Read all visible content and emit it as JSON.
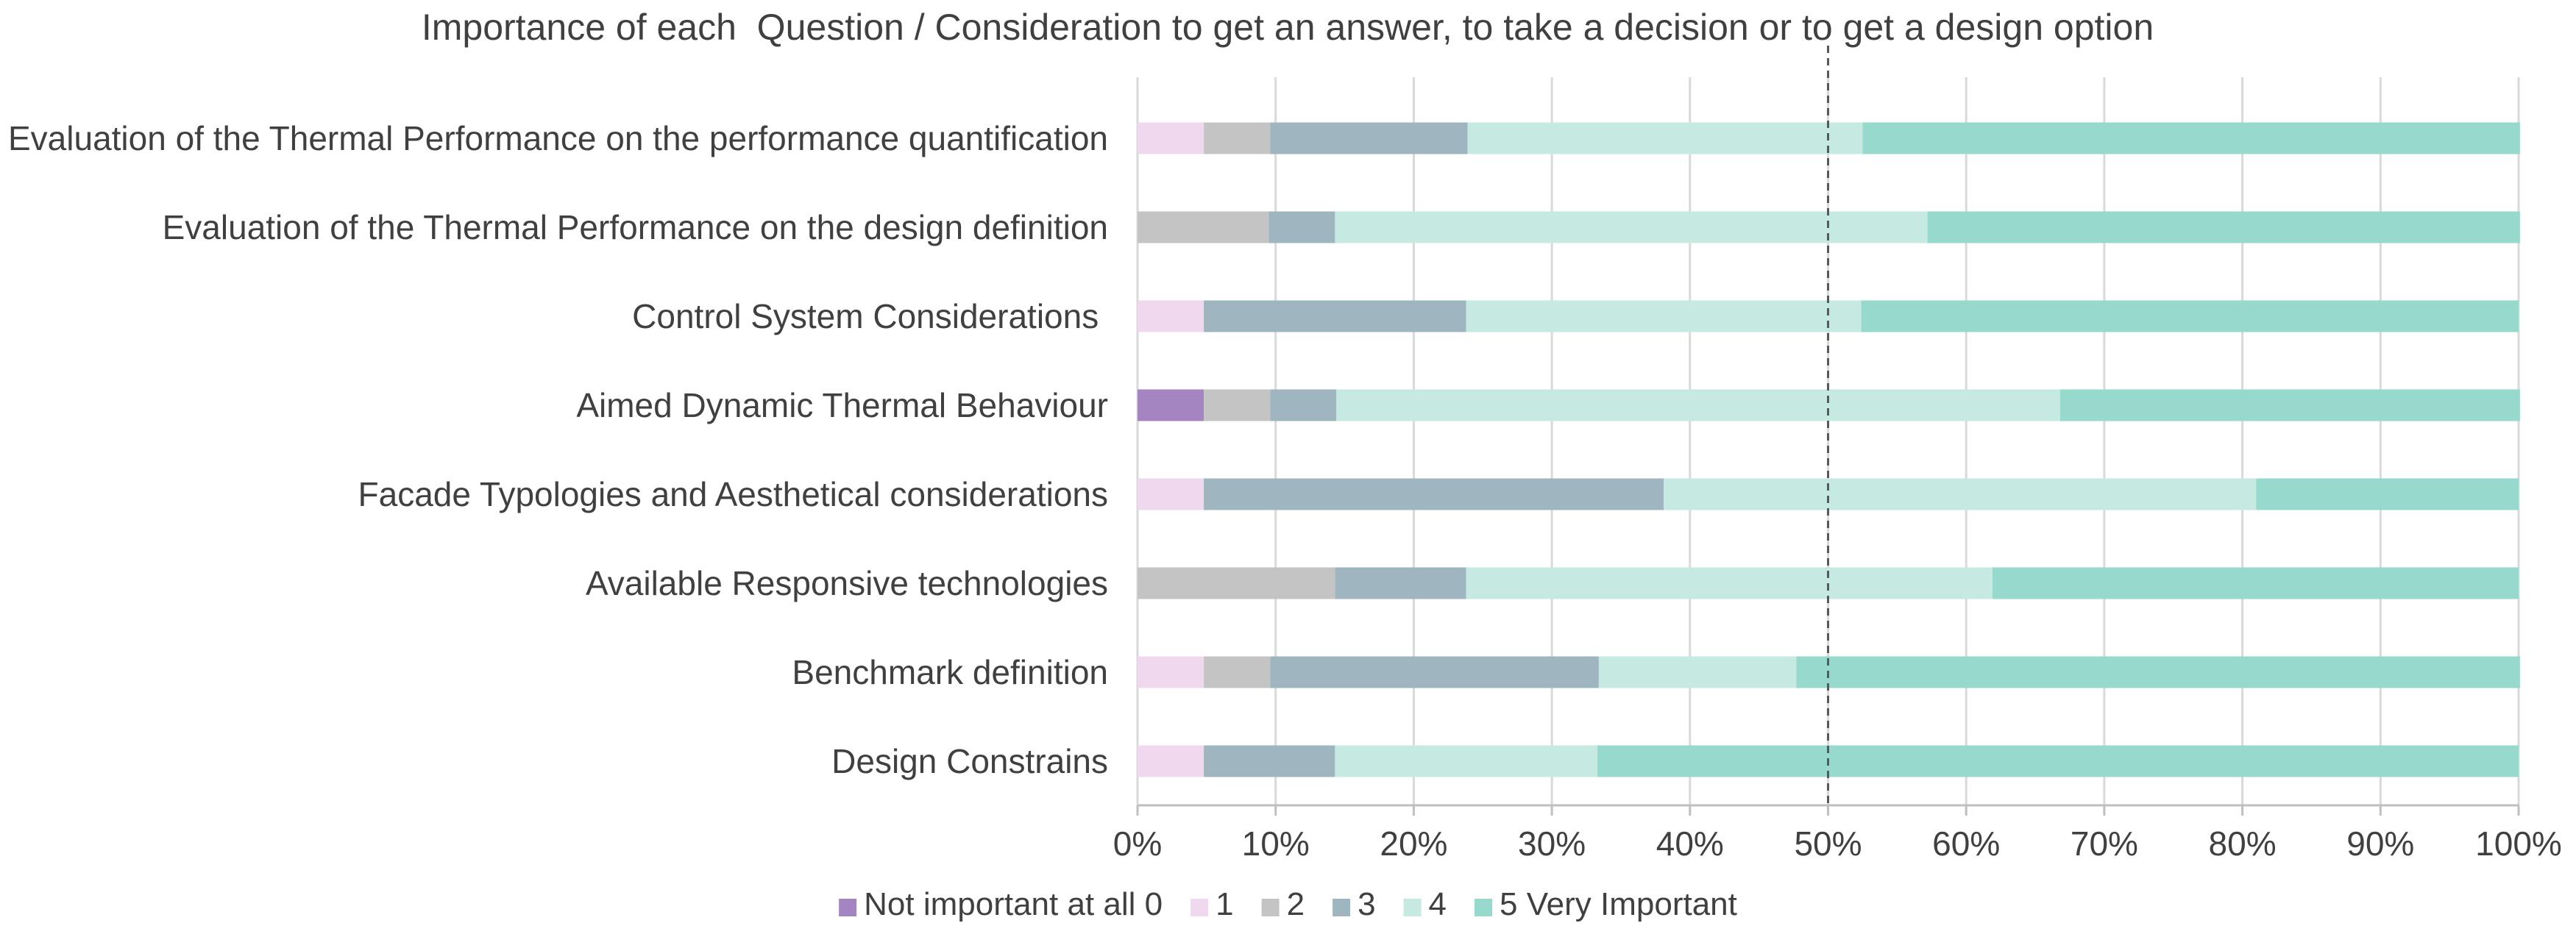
{
  "chart_data": {
    "type": "bar",
    "orientation": "horizontal",
    "stacked": "percent",
    "title": "Importance of each  Question / Consideration to get an answer, to take a decision or to get a design option",
    "xlabel": "",
    "ylabel": "",
    "xlim": [
      0,
      100
    ],
    "x_ticks": [
      "0%",
      "10%",
      "20%",
      "30%",
      "40%",
      "50%",
      "60%",
      "70%",
      "80%",
      "90%",
      "100%"
    ],
    "grid": true,
    "reference_line": {
      "value": 50,
      "style": "dashed"
    },
    "legend_position": "bottom",
    "categories": [
      "Evaluation of the Thermal Performance on the performance quantification",
      "Evaluation of the Thermal Performance on the design definition",
      "Control System Considerations ",
      "Aimed Dynamic Thermal Behaviour",
      "Facade Typologies and Aesthetical considerations",
      "Available Responsive technologies",
      "Benchmark definition",
      "Design Constrains"
    ],
    "series": [
      {
        "name": "Not important at all 0",
        "color": "#a585c1",
        "values": [
          0,
          0,
          0,
          4.8,
          0,
          0,
          0,
          0
        ]
      },
      {
        "name": "1",
        "color": "#f0d8ee",
        "values": [
          4.8,
          0,
          4.8,
          0,
          4.8,
          0,
          4.8,
          4.8
        ]
      },
      {
        "name": "2",
        "color": "#c4c4c4",
        "values": [
          4.8,
          9.5,
          0,
          4.8,
          0,
          14.3,
          4.8,
          0
        ]
      },
      {
        "name": "3",
        "color": "#9fb6c0",
        "values": [
          14.3,
          4.8,
          19.0,
          4.8,
          33.3,
          9.5,
          23.8,
          9.5
        ]
      },
      {
        "name": "4",
        "color": "#c6eae2",
        "values": [
          28.6,
          42.9,
          28.6,
          52.4,
          42.9,
          38.1,
          14.3,
          19.0
        ]
      },
      {
        "name": "5 Very Important",
        "color": "#97d9cc",
        "values": [
          47.6,
          42.9,
          47.6,
          33.3,
          19.0,
          38.1,
          52.4,
          66.7
        ]
      }
    ]
  }
}
